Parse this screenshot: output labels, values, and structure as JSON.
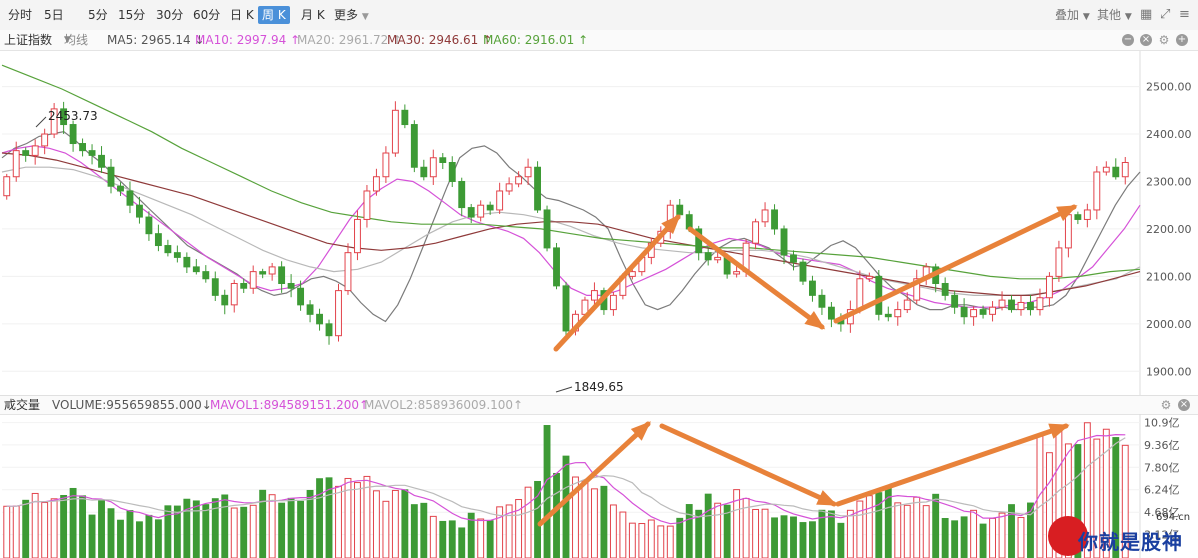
{
  "toolbar": {
    "timeframes": [
      "分时",
      "5日",
      "5分",
      "15分",
      "30分",
      "60分",
      "日 K",
      "周 K",
      "月 K",
      "更多"
    ],
    "active_timeframe": "周 K",
    "overlay_label": "叠加",
    "other_label": "其他"
  },
  "indicator_bar": {
    "index_name": "上证指数",
    "ma_type": "均线",
    "ma5": "MA5: 2965.14 ↓",
    "ma10": "MA10: 2997.94 ↑",
    "ma20": "MA20: 2961.72 ↑",
    "ma30": "MA30: 2946.61 ↑",
    "ma60": "MA60: 2916.01 ↑"
  },
  "volume_bar": {
    "title": "成交量",
    "volume": "VOLUME:955659855.000↓",
    "mavol1": "MAVOL1:894589151.200↑",
    "mavol2": "MAVOL2:858936009.100↑"
  },
  "annotations": {
    "high_label": "2453.73",
    "low_label": "1849.65"
  },
  "watermark": {
    "text": "你就是股神",
    "domain": "694.cn"
  },
  "colors": {
    "up": "#e2434b",
    "down": "#3d9a35",
    "arrow": "#e8823a",
    "active": "#4a90d9",
    "ma5": "#7b7b7b",
    "ma10": "#d552d8",
    "ma20": "#b8b8b8",
    "ma30": "#8f3a3a",
    "ma60": "#57a23b"
  },
  "chart_data": [
    {
      "type": "candlestick",
      "title": "上证指数 周K",
      "y_axis_ticks": [
        1900,
        2000,
        2100,
        2200,
        2300,
        2400,
        2500
      ],
      "y_tick_labels": [
        "1900.00",
        "2000.00",
        "2100.00",
        "2200.00",
        "2300.00",
        "2400.00",
        "2500.00"
      ],
      "ylim": [
        1850,
        2575
      ],
      "annotated_high": 2453.73,
      "annotated_low": 1849.65,
      "candles_close": [
        2310,
        2365,
        2355,
        2375,
        2400,
        2453,
        2420,
        2380,
        2365,
        2355,
        2330,
        2290,
        2280,
        2250,
        2225,
        2190,
        2165,
        2150,
        2140,
        2120,
        2110,
        2095,
        2060,
        2040,
        2085,
        2075,
        2110,
        2105,
        2120,
        2085,
        2075,
        2040,
        2020,
        2000,
        1975,
        2070,
        2150,
        2220,
        2280,
        2310,
        2360,
        2450,
        2420,
        2330,
        2310,
        2350,
        2340,
        2300,
        2245,
        2225,
        2250,
        2240,
        2280,
        2295,
        2310,
        2330,
        2240,
        2160,
        2080,
        1985,
        2020,
        2050,
        2070,
        2030,
        2060,
        2100,
        2110,
        2140,
        2170,
        2195,
        2250,
        2230,
        2200,
        2150,
        2135,
        2140,
        2105,
        2110,
        2170,
        2215,
        2240,
        2200,
        2145,
        2130,
        2090,
        2060,
        2035,
        2010,
        2000,
        2030,
        2095,
        2100,
        2020,
        2015,
        2030,
        2050,
        2095,
        2120,
        2085,
        2060,
        2035,
        2015,
        2030,
        2020,
        2035,
        2050,
        2030,
        2045,
        2030,
        2055,
        2100,
        2160,
        2230,
        2220,
        2240,
        2320,
        2330,
        2310,
        2340
      ],
      "series": [
        {
          "name": "MA5",
          "values": [
            2350,
            2370,
            2380,
            2395,
            2400,
            2405,
            2385,
            2360,
            2340,
            2315,
            2290,
            2265,
            2240,
            2215,
            2190,
            2165,
            2150,
            2135,
            2120,
            2105,
            2085,
            2070,
            2060,
            2065,
            2080,
            2095,
            2100,
            2090,
            2075,
            2045,
            2020,
            2005,
            2040,
            2095,
            2160,
            2225,
            2290,
            2350,
            2370,
            2375,
            2360,
            2330,
            2310,
            2285,
            2265,
            2260,
            2250,
            2240,
            2225,
            2200,
            2140,
            2085,
            2040,
            2030,
            2040,
            2070,
            2105,
            2135,
            2160,
            2175,
            2180,
            2170,
            2160,
            2140,
            2120,
            2125,
            2145,
            2165,
            2175,
            2160,
            2130,
            2100,
            2075,
            2060,
            2040,
            2030,
            2030,
            2040,
            2040,
            2035,
            2030,
            2035,
            2030,
            2035,
            2035,
            2040,
            2060,
            2100,
            2150,
            2200,
            2250,
            2290,
            2320
          ]
        },
        {
          "name": "MA10",
          "values": [
            2360,
            2370,
            2375,
            2370,
            2360,
            2340,
            2315,
            2290,
            2265,
            2240,
            2215,
            2190,
            2165,
            2140,
            2120,
            2100,
            2080,
            2070,
            2075,
            2085,
            2120,
            2170,
            2220,
            2260,
            2285,
            2305,
            2300,
            2280,
            2255,
            2230,
            2215,
            2205,
            2195,
            2180,
            2150,
            2110,
            2075,
            2060,
            2060,
            2070,
            2085,
            2100,
            2115,
            2135,
            2155,
            2170,
            2180,
            2175,
            2165,
            2150,
            2140,
            2135,
            2130,
            2125,
            2110,
            2090,
            2075,
            2065,
            2055,
            2045,
            2040,
            2035,
            2035,
            2035,
            2040,
            2045,
            2055,
            2070,
            2095,
            2120,
            2160,
            2200,
            2250
          ]
        },
        {
          "name": "MA20",
          "values": [
            2320,
            2330,
            2330,
            2325,
            2310,
            2290,
            2270,
            2250,
            2230,
            2205,
            2180,
            2155,
            2135,
            2120,
            2110,
            2115,
            2130,
            2160,
            2190,
            2215,
            2230,
            2235,
            2230,
            2220,
            2205,
            2185,
            2170,
            2160,
            2155,
            2150,
            2150,
            2155,
            2155,
            2150,
            2140,
            2125,
            2110,
            2095,
            2085,
            2075,
            2065,
            2060,
            2060,
            2060,
            2065,
            2075,
            2085,
            2095,
            2120
          ]
        },
        {
          "name": "MA30",
          "values": [
            2360,
            2355,
            2345,
            2330,
            2315,
            2300,
            2285,
            2270,
            2250,
            2230,
            2210,
            2190,
            2170,
            2160,
            2155,
            2160,
            2170,
            2185,
            2200,
            2210,
            2215,
            2215,
            2210,
            2195,
            2180,
            2170,
            2160,
            2150,
            2140,
            2130,
            2120,
            2110,
            2100,
            2090,
            2080,
            2070,
            2065,
            2060,
            2060,
            2070,
            2080,
            2095,
            2110
          ]
        },
        {
          "name": "MA60",
          "values": [
            2545,
            2520,
            2495,
            2465,
            2435,
            2405,
            2370,
            2340,
            2310,
            2280,
            2255,
            2235,
            2225,
            2215,
            2210,
            2210,
            2210,
            2205,
            2200,
            2190,
            2180,
            2175,
            2170,
            2165,
            2160,
            2160,
            2155,
            2150,
            2145,
            2140,
            2130,
            2120,
            2110,
            2100,
            2095,
            2095,
            2100,
            2110,
            2115
          ]
        }
      ]
    },
    {
      "type": "bar",
      "title": "成交量",
      "y_tick_labels": [
        "3.12亿",
        "4.68亿",
        "6.24亿",
        "7.80亿",
        "9.36亿",
        "10.9亿"
      ],
      "y_axis_ticks": [
        3.12,
        4.68,
        6.24,
        7.8,
        9.36,
        10.9
      ],
      "ylim": [
        1.5,
        11.5
      ]
    }
  ]
}
